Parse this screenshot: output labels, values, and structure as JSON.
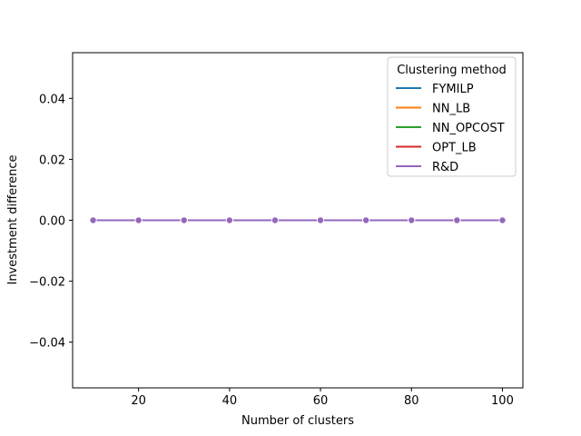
{
  "chart_data": {
    "type": "line",
    "xlabel": "Number of clusters",
    "ylabel": "Investment difference",
    "xlim": [
      5.5,
      104.5
    ],
    "ylim": [
      -0.055,
      0.055
    ],
    "xticks": [
      20,
      40,
      60,
      80,
      100
    ],
    "xtick_labels": [
      "20",
      "40",
      "60",
      "80",
      "100"
    ],
    "yticks": [
      -0.04,
      -0.02,
      0.0,
      0.02,
      0.04
    ],
    "ytick_labels": [
      "−0.04",
      "−0.02",
      "0.00",
      "0.02",
      "0.04"
    ],
    "grid": false,
    "legend": {
      "title": "Clustering method",
      "placement": "top-right"
    },
    "x": [
      10,
      20,
      30,
      40,
      50,
      60,
      70,
      80,
      90,
      100
    ],
    "series": [
      {
        "name": "FYMILP",
        "color": "#1f77b4",
        "values": [
          0,
          0,
          0,
          0,
          0,
          0,
          0,
          0,
          0,
          0
        ]
      },
      {
        "name": "NN_LB",
        "color": "#ff7f0e",
        "values": [
          0,
          0,
          0,
          0,
          0,
          0,
          0,
          0,
          0,
          0
        ]
      },
      {
        "name": "NN_OPCOST",
        "color": "#2ca02c",
        "values": [
          0,
          0,
          0,
          0,
          0,
          0,
          0,
          0,
          0,
          0
        ]
      },
      {
        "name": "OPT_LB",
        "color": "#d62728",
        "values": [
          0,
          0,
          0,
          0,
          0,
          0,
          0,
          0,
          0,
          0
        ]
      },
      {
        "name": "R&D",
        "color": "#9467bd",
        "values": [
          0,
          0,
          0,
          0,
          0,
          0,
          0,
          0,
          0,
          0
        ]
      }
    ]
  }
}
